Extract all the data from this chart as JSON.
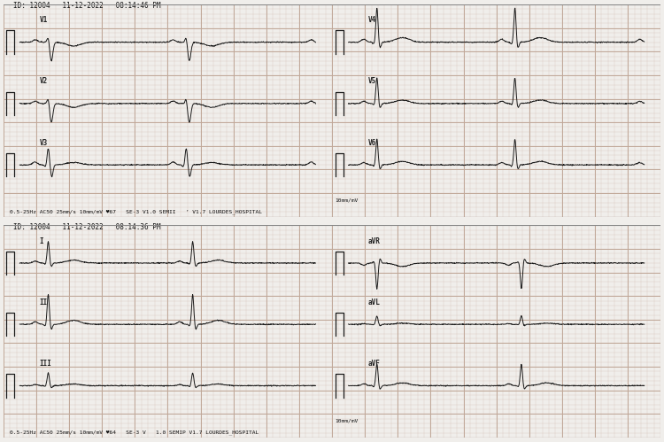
{
  "background_color": "#f0eeeb",
  "grid_minor_color": "#d8c8c0",
  "grid_major_color": "#c0a898",
  "ecg_color": "#1a1a1a",
  "panel1": {
    "header": "ID: 12004   11-12-2022   08:14:46 PM",
    "footer": "0.5-25Hz AC50 25mm/s 10mm/mV ♥67   SE-3 V1.0 SEMII   ’ V1.7 LOURDES_HOSPITAL",
    "footer2": "10mm/mV",
    "leads": [
      "V1",
      "V2",
      "V3",
      "V4",
      "V5",
      "V6"
    ],
    "heart_rate": 67
  },
  "panel2": {
    "header": "ID: 12004   11-12-2022   08:14:36 PM",
    "footer": "0.5-25Hz AC50 25mm/s 10mm/mV ♥64   SE-3 V   1.0 SEMIP V1.7 LOURDES_HOSPITAL",
    "footer2": "10mm/mV",
    "leads": [
      "I",
      "II",
      "III",
      "aVR",
      "aVL",
      "aVF"
    ],
    "heart_rate": 64
  },
  "figsize": [
    7.5,
    4.99
  ],
  "dpi": 100
}
